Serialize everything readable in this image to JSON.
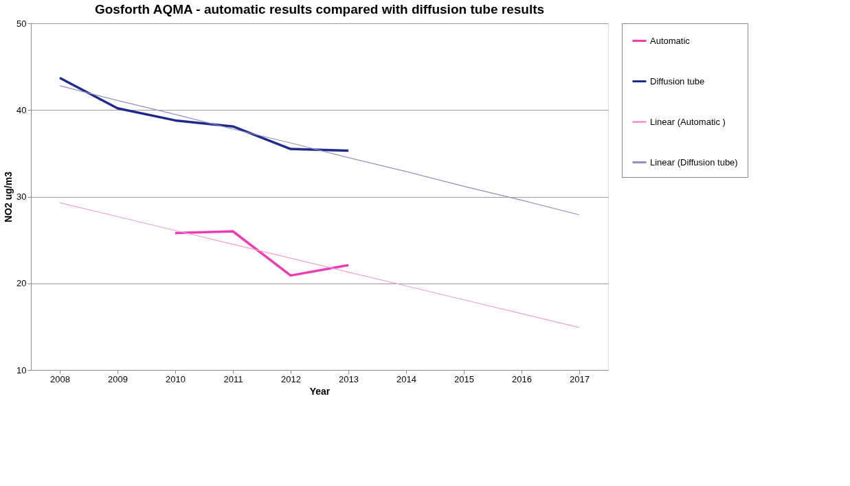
{
  "chart_data": {
    "type": "line",
    "title": "Gosforth AQMA - automatic results compared with diffusion tube results",
    "xlabel": "Year",
    "ylabel": "NO2 ug/m3",
    "categories": [
      "2008",
      "2009",
      "2010",
      "2011",
      "2012",
      "2013",
      "2014",
      "2015",
      "2016",
      "2017"
    ],
    "series": [
      {
        "name": "Automatic",
        "color": "#f03cb4",
        "values": [
          null,
          null,
          25.8,
          26.0,
          20.9,
          22.1,
          null,
          null,
          null,
          null
        ]
      },
      {
        "name": "Diffusion tube",
        "color": "#1f2a8c",
        "values": [
          43.7,
          40.2,
          38.8,
          38.1,
          35.5,
          35.3,
          null,
          null,
          null,
          null
        ]
      },
      {
        "name": "Linear (Automatic )",
        "type": "line",
        "color": "#f0a0d0",
        "values": [
          29.3,
          27.7,
          26.1,
          24.5,
          22.9,
          21.3,
          19.7,
          18.1,
          16.5,
          14.9
        ]
      },
      {
        "name": "Linear (Diffusion tube)",
        "type": "line",
        "color": "#9090c0",
        "values": [
          42.8,
          41.1,
          39.5,
          37.8,
          36.2,
          34.5,
          32.9,
          31.2,
          29.6,
          27.9
        ]
      }
    ],
    "ylim": [
      10,
      50
    ],
    "yticks": [
      10,
      20,
      30,
      40,
      50
    ],
    "grid": "y",
    "legend": "right"
  }
}
